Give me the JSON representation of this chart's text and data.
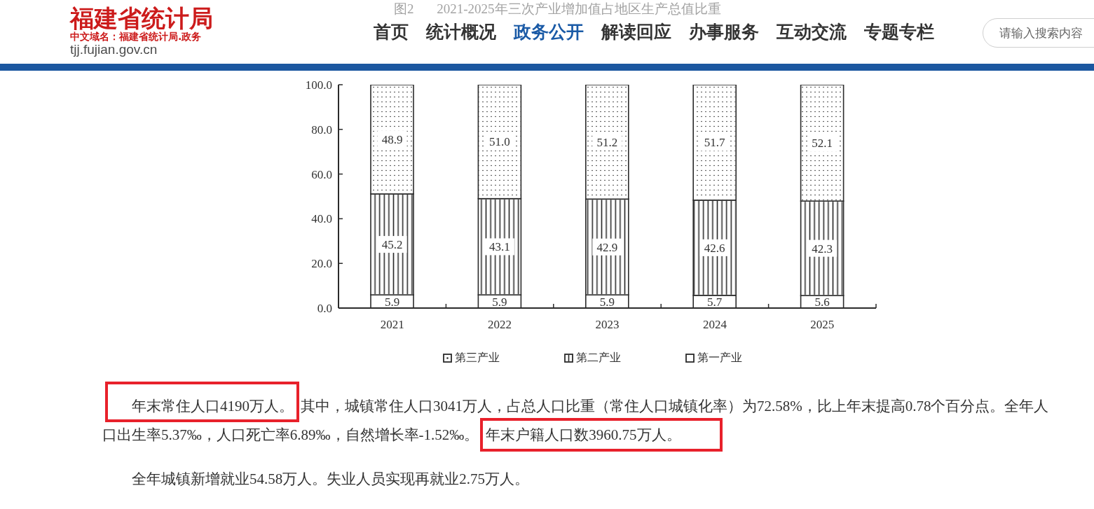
{
  "chart_data": {
    "type": "bar",
    "stacked": true,
    "title": "图2 2021-2025年三次产业增加值占地区生产总值比重",
    "categories": [
      "2021",
      "2022",
      "2023",
      "2024",
      "2025"
    ],
    "series": [
      {
        "name": "第一产业",
        "color": "#ffffff",
        "values": [
          5.9,
          5.9,
          5.9,
          5.7,
          5.6
        ],
        "value_labels": [
          "5.9",
          "5.9",
          "5.9",
          "5.7",
          "5.6"
        ]
      },
      {
        "name": "第二产业",
        "color": "#ffffff",
        "values": [
          45.2,
          43.1,
          42.9,
          42.6,
          42.3
        ],
        "value_labels": [
          "45.2",
          "43.1",
          "42.9",
          "42.6",
          "42.3"
        ]
      },
      {
        "name": "第三产业",
        "color": "#ffffff",
        "values": [
          48.9,
          51.0,
          51.2,
          51.7,
          52.1
        ],
        "value_labels": [
          "48.9",
          "51.0",
          "51.2",
          "51.7",
          "52.1"
        ]
      }
    ],
    "ylim": [
      0,
      100
    ],
    "yticks": [
      {
        "value": 0,
        "label": "0.0"
      },
      {
        "value": 20,
        "label": "20.0"
      },
      {
        "value": 40,
        "label": "40.0"
      },
      {
        "value": 60,
        "label": "60.0"
      },
      {
        "value": 80,
        "label": "80.0"
      },
      {
        "value": 100,
        "label": "100.0"
      }
    ],
    "legend": "bottom",
    "annotations": [
      "福建省统计局",
      "中文域名：福建省统计局.政务",
      "tjj.fujian.gov.cn",
      "首页",
      "统计概况",
      "政务公开",
      "解读回应",
      "办事服务",
      "互动交流",
      "专题专栏",
      "请输入搜索内容",
      "年末常住人口4190万人。",
      "其中，城镇常住人口3041万人，占总人口比重（常住人口城镇化率）为72.58%，比上年末提高0.78个百分点。全年人",
      "口出生率5.37‰，人口死亡率6.89‰，自然增长率-1.52‰。",
      "年末户籍人口数3960.75万人。",
      "全年城镇新增就业54.58万人。失业人员实现再就业2.75万人。"
    ]
  }
}
